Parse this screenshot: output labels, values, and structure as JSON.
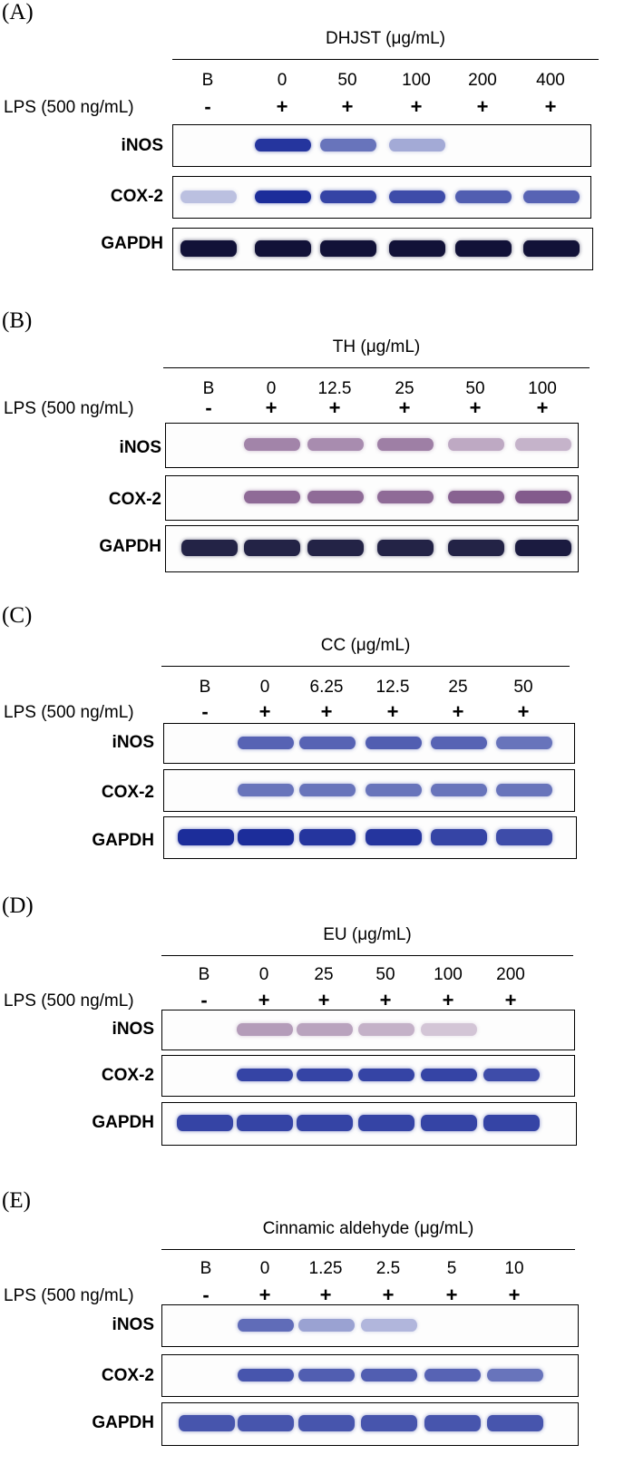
{
  "lps_label": "LPS (500 ng/mL)",
  "rows": {
    "inos": "iNOS",
    "cox2": "COX-2",
    "gapdh": "GAPDH"
  },
  "colors": {
    "blue_stain": "#1c2d9a",
    "purple_stain": "#6d3e78",
    "dark_stain": "#121238"
  },
  "panels": [
    {
      "label": "(A)",
      "title": "DHJST (μg/mL)",
      "lanes": [
        "B",
        "0",
        "50",
        "100",
        "200",
        "400"
      ],
      "lps": [
        "-",
        "+",
        "+",
        "+",
        "+",
        "+"
      ],
      "intensity": {
        "inos": [
          0,
          0.95,
          0.55,
          0.2,
          0,
          0
        ],
        "cox2": [
          0.05,
          1,
          0.85,
          0.8,
          0.7,
          0.65
        ],
        "gapdh": [
          1,
          1,
          1,
          1,
          1,
          1
        ]
      }
    },
    {
      "label": "(B)",
      "title": "TH (μg/mL)",
      "lanes": [
        "B",
        "0",
        "12.5",
        "25",
        "50",
        "100"
      ],
      "lps": [
        "-",
        "+",
        "+",
        "+",
        "+",
        "+"
      ],
      "intensity": {
        "inos": [
          0,
          0.5,
          0.45,
          0.55,
          0.25,
          0.18
        ],
        "cox2": [
          0,
          0.7,
          0.7,
          0.7,
          0.75,
          0.8
        ],
        "gapdh": [
          0.9,
          0.9,
          0.9,
          0.9,
          0.9,
          0.95
        ]
      }
    },
    {
      "label": "(C)",
      "title": "CC (μg/mL)",
      "lanes": [
        "B",
        "0",
        "6.25",
        "12.5",
        "25",
        "50"
      ],
      "lps": [
        "-",
        "+",
        "+",
        "+",
        "+",
        "+"
      ],
      "intensity": {
        "inos": [
          0,
          0.65,
          0.65,
          0.7,
          0.65,
          0.55
        ],
        "cox2": [
          0,
          0.55,
          0.55,
          0.55,
          0.55,
          0.55
        ],
        "gapdh": [
          1,
          1,
          0.95,
          0.95,
          0.85,
          0.8
        ]
      }
    },
    {
      "label": "(D)",
      "title": "EU (μg/mL)",
      "lanes": [
        "B",
        "0",
        "25",
        "50",
        "100",
        "200"
      ],
      "lps": [
        "-",
        "+",
        "+",
        "+",
        "+",
        "+"
      ],
      "intensity": {
        "inos": [
          0,
          0.35,
          0.3,
          0.2,
          0.05,
          0
        ],
        "cox2": [
          0,
          0.85,
          0.85,
          0.85,
          0.85,
          0.8
        ],
        "gapdh": [
          0.85,
          0.85,
          0.85,
          0.85,
          0.85,
          0.85
        ]
      }
    },
    {
      "label": "(E)",
      "title": "Cinnamic aldehyde (μg/mL)",
      "lanes": [
        "B",
        "0",
        "1.25",
        "2.5",
        "5",
        "10"
      ],
      "lps": [
        "-",
        "+",
        "+",
        "+",
        "+",
        "+"
      ],
      "intensity": {
        "inos": [
          0,
          0.6,
          0.25,
          0.12,
          0,
          0
        ],
        "cox2": [
          0,
          0.75,
          0.7,
          0.7,
          0.65,
          0.55
        ],
        "gapdh": [
          0.75,
          0.75,
          0.75,
          0.75,
          0.75,
          0.75
        ]
      }
    }
  ]
}
